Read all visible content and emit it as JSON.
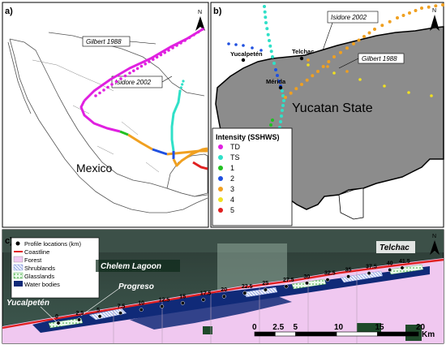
{
  "panels": {
    "a": {
      "label": "a)",
      "country_label": "Mexico",
      "callouts": {
        "gilbert": "Gilbert 1988",
        "isidore": "Isidore 2002"
      },
      "north_label": "N"
    },
    "b": {
      "label": "b)",
      "state_label": "Yucatan State",
      "callouts": {
        "isidore": "Isidore 2002",
        "gilbert": "Gilbert 1988"
      },
      "cities": [
        {
          "name": "Yucalpetén"
        },
        {
          "name": "Telchac"
        },
        {
          "name": "Mérida"
        }
      ],
      "north_label": "N",
      "legend": {
        "title": "Intensity (SSHWS)",
        "items": [
          {
            "label": "TD",
            "color": "#e020e0"
          },
          {
            "label": "TS",
            "color": "#30e0c8"
          },
          {
            "label": "1",
            "color": "#22c022"
          },
          {
            "label": "2",
            "color": "#2050e0"
          },
          {
            "label": "3",
            "color": "#f0a020"
          },
          {
            "label": "4",
            "color": "#f0e020"
          },
          {
            "label": "5",
            "color": "#e02020"
          }
        ]
      }
    },
    "c": {
      "label": "c)",
      "legend": {
        "profile_locations": "Profile locations (km)",
        "coastline": "Coastline",
        "forest": "Forest",
        "shrublands": "Shrublands",
        "grasslands": "Glasslands",
        "water_bodies": "Water bodies"
      },
      "place_labels": {
        "chelem": "Chelem Lagoon",
        "progreso": "Progreso",
        "yucalpeten": "Yucalpetén",
        "telchac": "Telchac"
      },
      "profile_km": [
        "0",
        "2.5",
        "5",
        "7.5",
        "10",
        "12.5",
        "15",
        "17.5",
        "20",
        "22.5",
        "25",
        "27.5",
        "30",
        "32.5",
        "35",
        "37.5",
        "40",
        "41.5"
      ],
      "scalebar": {
        "ticks": [
          "0",
          "2.5",
          "5",
          "10",
          "15",
          "20"
        ],
        "unit": "Km"
      },
      "north_label": "N"
    }
  }
}
